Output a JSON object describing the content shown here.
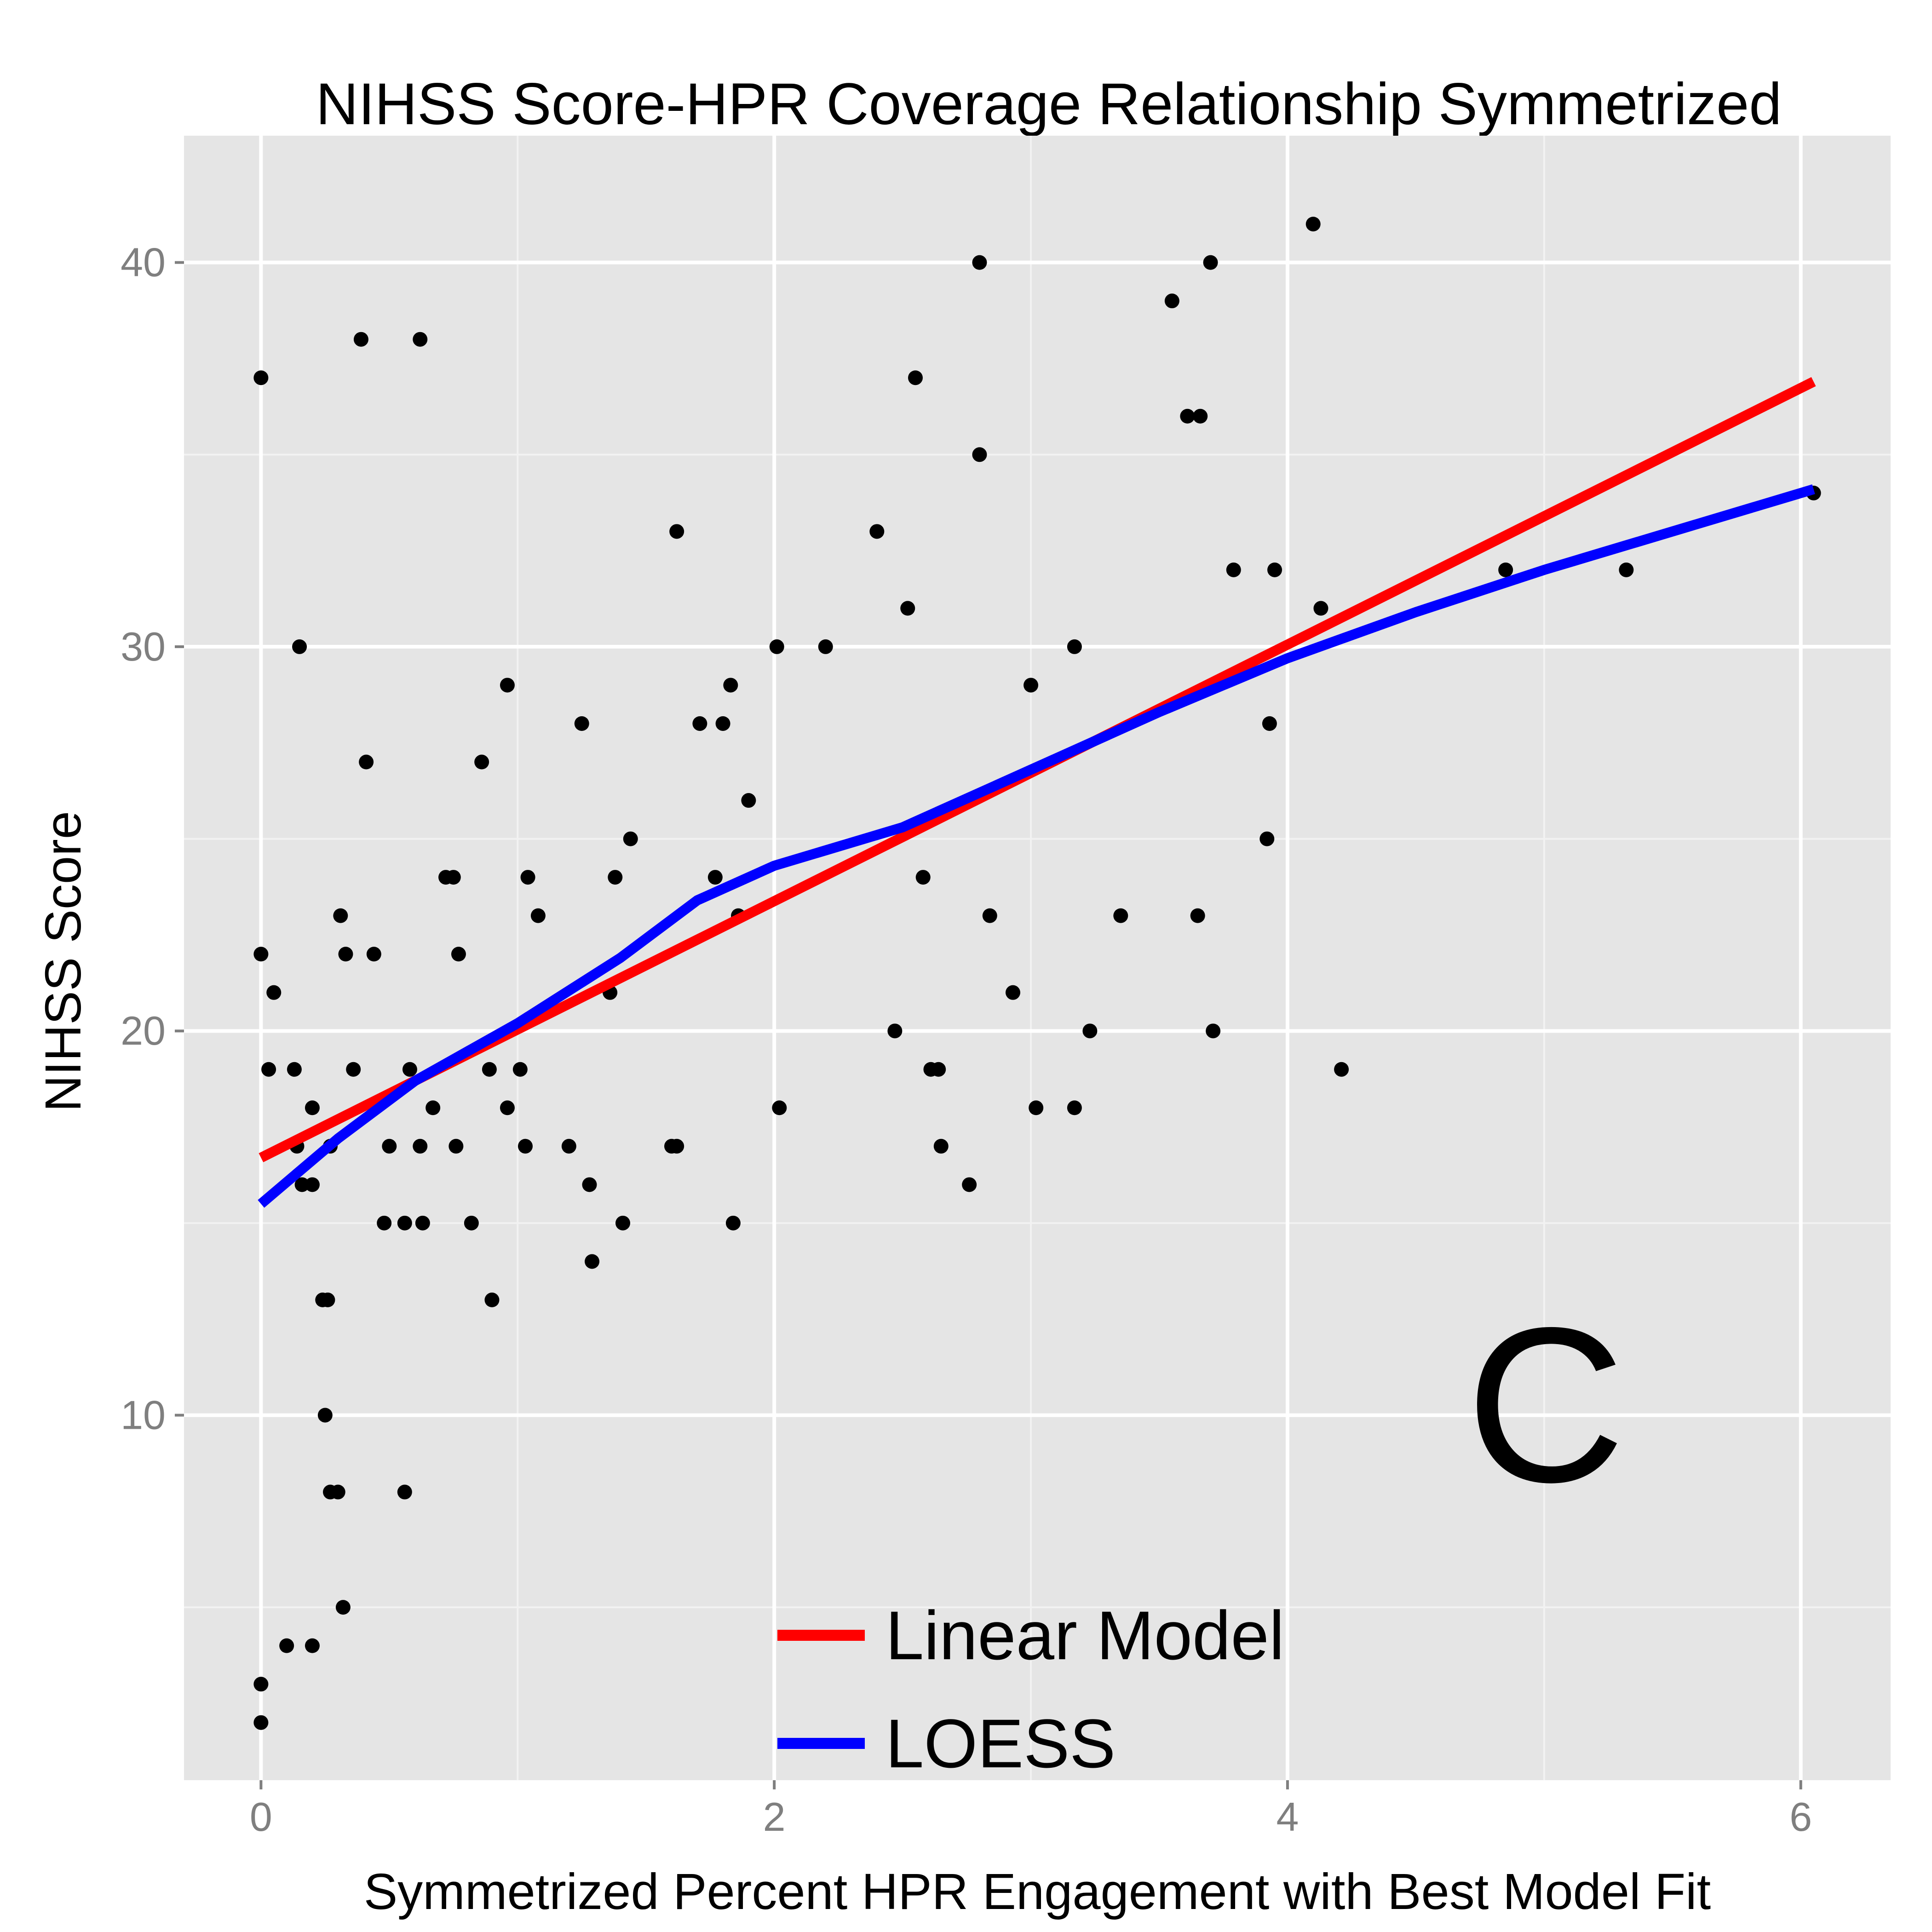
{
  "chart_data": {
    "type": "scatter",
    "title": "NIHSS Score-HPR Coverage Relationship Symmetrized",
    "xlabel": "Symmetrized Percent HPR Engagement with Best Model Fit",
    "ylabel": "NIHSS Score",
    "xlim": [
      -0.3,
      6.35
    ],
    "ylim": [
      0.5,
      43.3
    ],
    "x_ticks": [
      0,
      2,
      4,
      6
    ],
    "y_ticks": [
      10,
      20,
      30,
      40
    ],
    "grid": true,
    "panel_label": "C",
    "legend": {
      "placement": "bottom-center",
      "entries": [
        {
          "label": "Linear Model",
          "color": "#ff0000"
        },
        {
          "label": "LOESS",
          "color": "#0000ff"
        }
      ]
    },
    "points": [
      [
        0.0,
        37
      ],
      [
        0.0,
        22
      ],
      [
        0.05,
        21
      ],
      [
        0.03,
        19
      ],
      [
        0.0,
        3
      ],
      [
        0.0,
        2
      ],
      [
        0.1,
        4
      ],
      [
        0.13,
        19
      ],
      [
        0.14,
        17
      ],
      [
        0.15,
        30
      ],
      [
        0.16,
        16
      ],
      [
        0.2,
        16
      ],
      [
        0.2,
        4
      ],
      [
        0.2,
        18
      ],
      [
        0.24,
        13
      ],
      [
        0.26,
        13
      ],
      [
        0.25,
        10
      ],
      [
        0.27,
        8
      ],
      [
        0.3,
        8
      ],
      [
        0.27,
        17
      ],
      [
        0.31,
        23
      ],
      [
        0.33,
        22
      ],
      [
        0.32,
        5
      ],
      [
        0.36,
        19
      ],
      [
        0.39,
        38
      ],
      [
        0.41,
        27
      ],
      [
        0.44,
        22
      ],
      [
        0.48,
        15
      ],
      [
        0.5,
        17
      ],
      [
        0.56,
        15
      ],
      [
        0.56,
        8
      ],
      [
        0.58,
        19
      ],
      [
        0.62,
        38
      ],
      [
        0.62,
        17
      ],
      [
        0.63,
        15
      ],
      [
        0.67,
        18
      ],
      [
        0.72,
        24
      ],
      [
        0.75,
        24
      ],
      [
        0.76,
        17
      ],
      [
        0.77,
        22
      ],
      [
        0.82,
        15
      ],
      [
        0.86,
        27
      ],
      [
        0.89,
        19
      ],
      [
        0.9,
        13
      ],
      [
        0.96,
        29
      ],
      [
        0.96,
        18
      ],
      [
        1.01,
        19
      ],
      [
        1.03,
        17
      ],
      [
        1.04,
        24
      ],
      [
        1.08,
        23
      ],
      [
        1.2,
        17
      ],
      [
        1.25,
        28
      ],
      [
        1.28,
        16
      ],
      [
        1.29,
        14
      ],
      [
        1.36,
        21
      ],
      [
        1.38,
        24
      ],
      [
        1.41,
        15
      ],
      [
        1.44,
        25
      ],
      [
        1.6,
        17
      ],
      [
        1.62,
        17
      ],
      [
        1.62,
        33
      ],
      [
        1.71,
        28
      ],
      [
        1.77,
        24
      ],
      [
        1.8,
        28
      ],
      [
        1.83,
        29
      ],
      [
        1.84,
        15
      ],
      [
        1.86,
        23
      ],
      [
        1.9,
        26
      ],
      [
        2.01,
        30
      ],
      [
        2.02,
        18
      ],
      [
        2.2,
        30
      ],
      [
        2.4,
        33
      ],
      [
        2.47,
        20
      ],
      [
        2.52,
        31
      ],
      [
        2.55,
        37
      ],
      [
        2.58,
        24
      ],
      [
        2.61,
        19
      ],
      [
        2.64,
        19
      ],
      [
        2.65,
        17
      ],
      [
        2.76,
        16
      ],
      [
        2.8,
        40
      ],
      [
        2.8,
        35
      ],
      [
        2.84,
        23
      ],
      [
        2.93,
        21
      ],
      [
        3.0,
        29
      ],
      [
        3.02,
        18
      ],
      [
        3.17,
        30
      ],
      [
        3.17,
        18
      ],
      [
        3.23,
        20
      ],
      [
        3.35,
        23
      ],
      [
        3.55,
        39
      ],
      [
        3.61,
        36
      ],
      [
        3.66,
        36
      ],
      [
        3.65,
        23
      ],
      [
        3.7,
        40
      ],
      [
        3.71,
        20
      ],
      [
        3.79,
        32
      ],
      [
        3.92,
        25
      ],
      [
        3.93,
        28
      ],
      [
        3.95,
        32
      ],
      [
        4.1,
        41
      ],
      [
        4.13,
        31
      ],
      [
        4.21,
        19
      ],
      [
        4.85,
        32
      ],
      [
        5.32,
        32
      ],
      [
        6.05,
        34
      ]
    ],
    "series": [
      {
        "name": "Linear Model",
        "color": "#ff0000",
        "x": [
          0.0,
          6.05
        ],
        "y": [
          16.7,
          36.9
        ]
      },
      {
        "name": "LOESS",
        "color": "#0000ff",
        "x": [
          0.0,
          0.3,
          0.6,
          1.0,
          1.4,
          1.7,
          2.0,
          2.5,
          3.0,
          3.5,
          4.0,
          4.5,
          5.0,
          5.5,
          6.05
        ],
        "y": [
          15.5,
          17.2,
          18.7,
          20.2,
          21.9,
          23.4,
          24.3,
          25.3,
          26.8,
          28.3,
          29.7,
          30.9,
          32.0,
          33.0,
          34.1
        ]
      }
    ]
  }
}
